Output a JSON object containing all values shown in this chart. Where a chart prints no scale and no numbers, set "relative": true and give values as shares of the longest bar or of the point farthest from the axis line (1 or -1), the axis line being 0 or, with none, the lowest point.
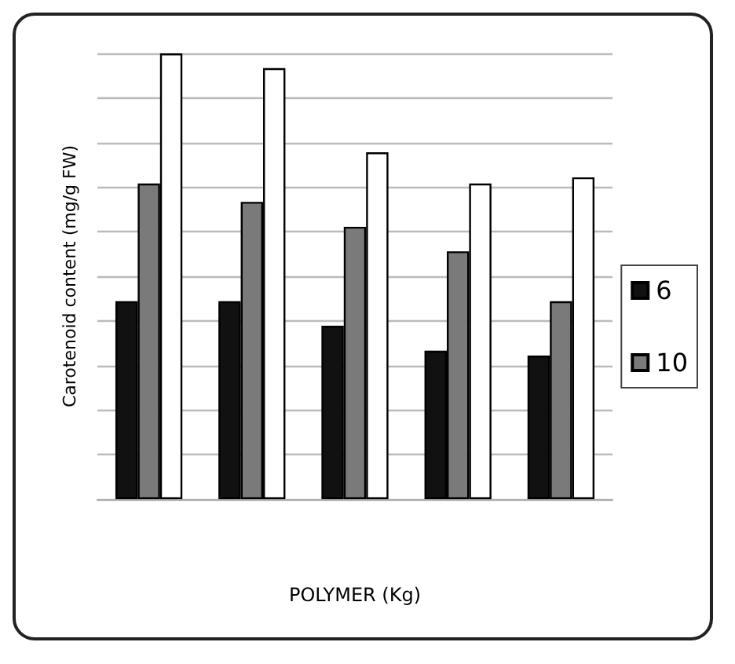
{
  "chart_data": {
    "type": "bar",
    "relative": true,
    "xlabel": "POLYMER (Kg)",
    "ylabel": "Carotenoid content (mg/g FW)",
    "categories": [
      null,
      null,
      null,
      null,
      null
    ],
    "series": [
      {
        "name": "6",
        "color": "#111111",
        "values": [
          0.444,
          0.444,
          0.389,
          0.333,
          0.322
        ]
      },
      {
        "name": "10",
        "color": "#7a7a7a",
        "values": [
          0.708,
          0.667,
          0.611,
          0.556,
          0.444
        ]
      },
      {
        "color": "#ffffff",
        "values": [
          1,
          0.967,
          0.778,
          0.708,
          0.722
        ]
      }
    ],
    "grid": "y",
    "legend": "right"
  }
}
